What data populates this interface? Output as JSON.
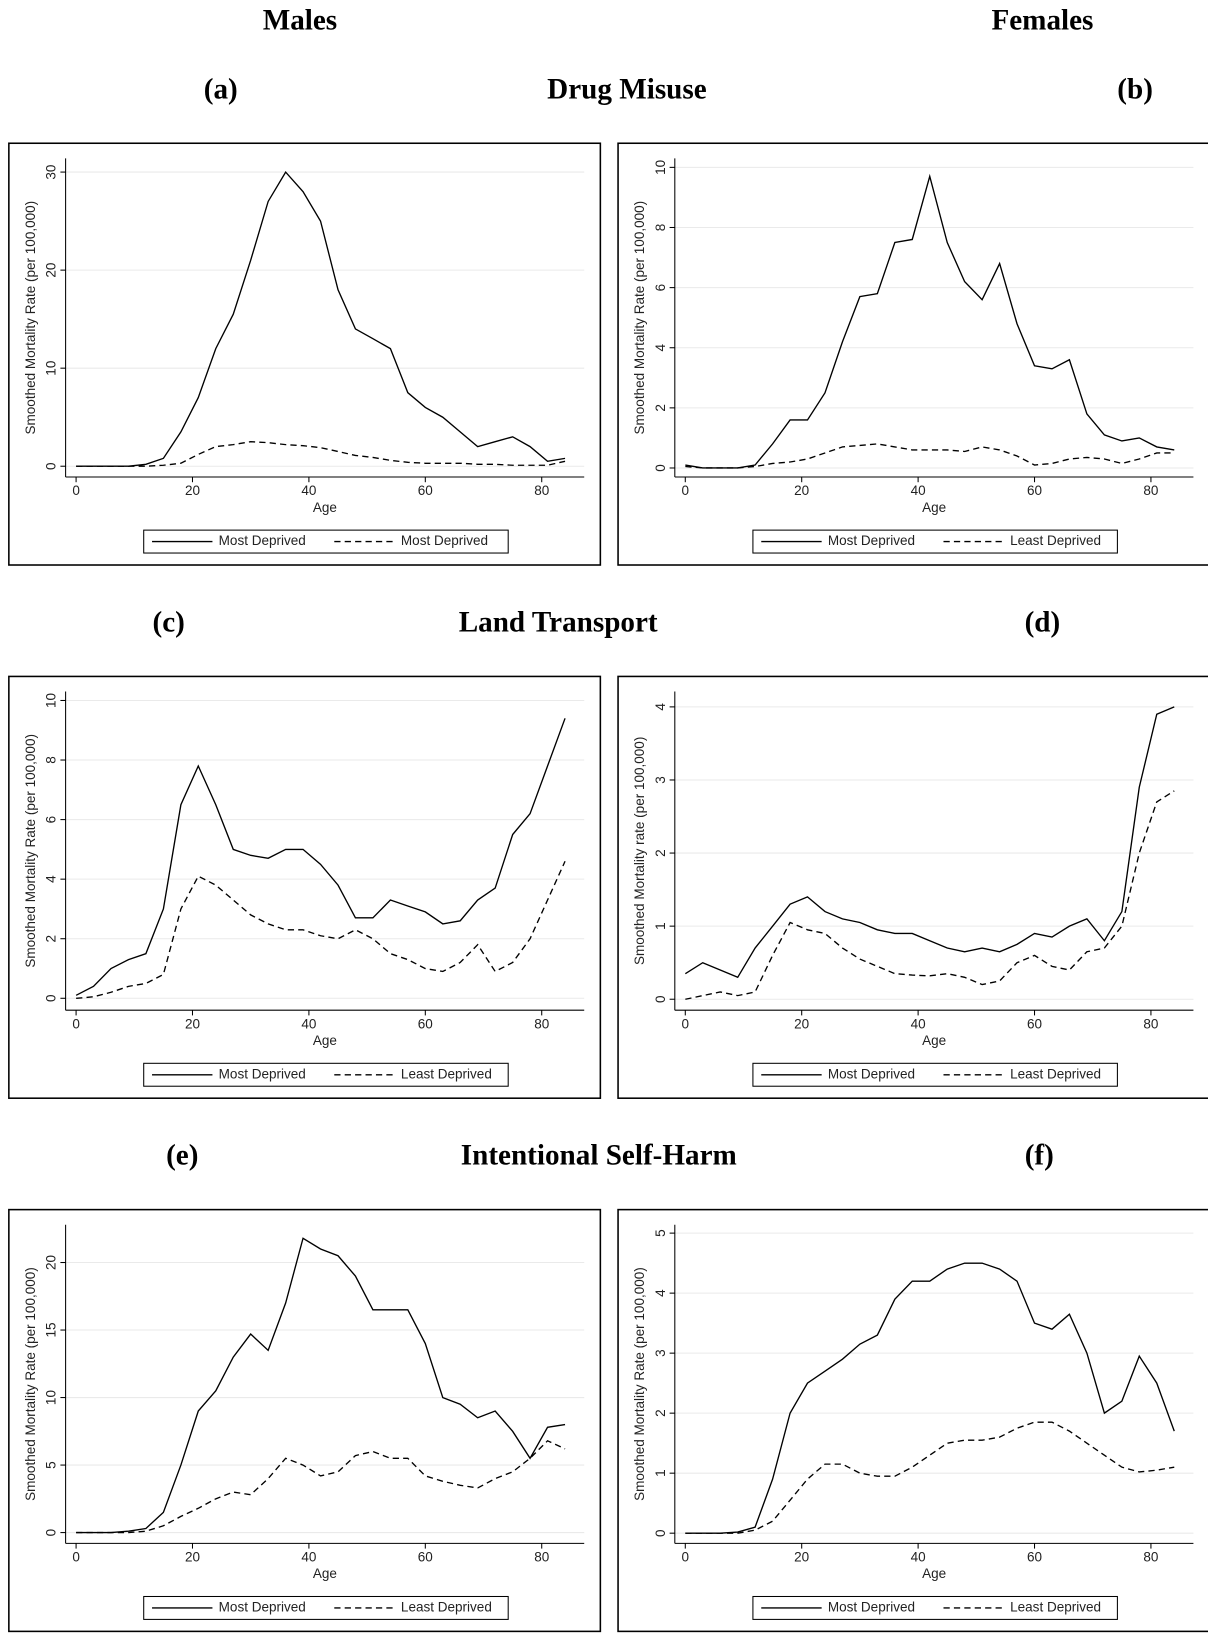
{
  "column_labels": [
    "Males",
    "Females"
  ],
  "rows": [
    "Drug Misuse",
    "Land Transport",
    "Intentional Self-Harm"
  ],
  "chart_data": [
    {
      "type": "line",
      "label": "(a)",
      "x_label": "Age",
      "y_label": "Smoothed Mortality Rate (per 100,000)",
      "x": [
        0,
        3,
        6,
        9,
        12,
        15,
        18,
        21,
        24,
        27,
        30,
        33,
        36,
        39,
        42,
        45,
        48,
        51,
        54,
        57,
        60,
        63,
        66,
        69,
        72,
        75,
        78,
        81,
        84
      ],
      "xlim": [
        -1.8,
        87.3
      ],
      "ylim": [
        -1.1,
        31.4
      ],
      "xticks": [
        0,
        20,
        40,
        60,
        80
      ],
      "yticks": [
        0,
        10,
        20,
        30
      ],
      "grid": true,
      "series": [
        {
          "name": "Most Deprived",
          "color": "#000000",
          "dashed": false,
          "values": [
            0,
            0,
            0,
            0,
            0.2,
            0.8,
            3.5,
            7,
            12,
            15.5,
            21,
            27,
            30,
            28,
            25,
            18,
            14,
            13,
            12,
            7.5,
            6,
            5,
            3.5,
            2,
            2.5,
            3,
            2,
            0.5,
            0.8
          ]
        },
        {
          "name": "Most Deprived",
          "color": "#000000",
          "dashed": true,
          "values": [
            0,
            0,
            0,
            0,
            0,
            0.1,
            0.3,
            1.2,
            2,
            2.2,
            2.5,
            2.4,
            2.2,
            2.1,
            1.9,
            1.5,
            1.1,
            0.9,
            0.6,
            0.4,
            0.3,
            0.3,
            0.3,
            0.2,
            0.2,
            0.1,
            0.1,
            0.1,
            0.5
          ]
        }
      ]
    },
    {
      "type": "line",
      "label": "(b)",
      "x_label": "Age",
      "y_label": "Smoothed Mortality Rate (per 100,000)",
      "x": [
        0,
        3,
        6,
        9,
        12,
        15,
        18,
        21,
        24,
        27,
        30,
        33,
        36,
        39,
        42,
        45,
        48,
        51,
        54,
        57,
        60,
        63,
        66,
        69,
        72,
        75,
        78,
        81,
        84
      ],
      "xlim": [
        -1.8,
        87.3
      ],
      "ylim": [
        -0.3,
        10.3
      ],
      "xticks": [
        0,
        20,
        40,
        60,
        80
      ],
      "yticks": [
        0,
        2,
        4,
        6,
        8,
        10
      ],
      "grid": true,
      "series": [
        {
          "name": "Most Deprived",
          "color": "#000000",
          "dashed": false,
          "values": [
            0.1,
            0,
            0,
            0,
            0.1,
            0.8,
            1.6,
            1.6,
            2.5,
            4.2,
            5.7,
            5.8,
            7.5,
            7.6,
            9.7,
            7.5,
            6.2,
            5.6,
            6.8,
            4.8,
            3.4,
            3.3,
            3.6,
            1.8,
            1.1,
            0.9,
            1,
            0.7,
            0.6
          ]
        },
        {
          "name": "Least Deprived",
          "color": "#000000",
          "dashed": true,
          "values": [
            0.05,
            0,
            0,
            0,
            0.05,
            0.15,
            0.2,
            0.3,
            0.5,
            0.7,
            0.75,
            0.8,
            0.7,
            0.6,
            0.6,
            0.6,
            0.55,
            0.7,
            0.6,
            0.4,
            0.1,
            0.15,
            0.3,
            0.35,
            0.3,
            0.15,
            0.3,
            0.5,
            0.5
          ]
        }
      ]
    },
    {
      "type": "line",
      "label": "(c)",
      "x_label": "Age",
      "y_label": "Smoothed Mortality Rate (per 100,000)",
      "x": [
        0,
        3,
        6,
        9,
        12,
        15,
        18,
        21,
        24,
        27,
        30,
        33,
        36,
        39,
        42,
        45,
        48,
        51,
        54,
        57,
        60,
        63,
        66,
        69,
        72,
        75,
        78,
        81,
        84
      ],
      "xlim": [
        -1.8,
        87.3
      ],
      "ylim": [
        -0.4,
        10.3
      ],
      "xticks": [
        0,
        20,
        40,
        60,
        80
      ],
      "yticks": [
        0,
        2,
        4,
        6,
        8,
        10
      ],
      "grid": true,
      "series": [
        {
          "name": "Most Deprived",
          "color": "#000000",
          "dashed": false,
          "values": [
            0.1,
            0.4,
            1,
            1.3,
            1.5,
            3,
            6.5,
            7.8,
            6.5,
            5,
            4.8,
            4.7,
            5,
            5,
            4.5,
            3.8,
            2.7,
            2.7,
            3.3,
            3.1,
            2.9,
            2.5,
            2.6,
            3.3,
            3.7,
            5.5,
            6.2,
            7.8,
            9.4
          ]
        },
        {
          "name": "Least Deprived",
          "color": "#000000",
          "dashed": true,
          "values": [
            0,
            0.05,
            0.2,
            0.4,
            0.5,
            0.8,
            3,
            4.1,
            3.8,
            3.3,
            2.8,
            2.5,
            2.3,
            2.3,
            2.1,
            2,
            2.3,
            2,
            1.5,
            1.3,
            1,
            0.9,
            1.2,
            1.8,
            0.9,
            1.2,
            2,
            3.3,
            4.6
          ]
        }
      ]
    },
    {
      "type": "line",
      "label": "(d)",
      "x_label": "Age",
      "y_label": "Smoothed Mortality rate (per 100,000)",
      "x": [
        0,
        3,
        6,
        9,
        12,
        15,
        18,
        21,
        24,
        27,
        30,
        33,
        36,
        39,
        42,
        45,
        48,
        51,
        54,
        57,
        60,
        63,
        66,
        69,
        72,
        75,
        78,
        81,
        84
      ],
      "xlim": [
        -1.8,
        87.3
      ],
      "ylim": [
        -0.15,
        4.21
      ],
      "xticks": [
        0,
        20,
        40,
        60,
        80
      ],
      "yticks": [
        0,
        1,
        2,
        3,
        4
      ],
      "grid": true,
      "series": [
        {
          "name": "Most Deprived",
          "color": "#000000",
          "dashed": false,
          "values": [
            0.35,
            0.5,
            0.4,
            0.3,
            0.7,
            1.0,
            1.3,
            1.4,
            1.2,
            1.1,
            1.05,
            0.95,
            0.9,
            0.9,
            0.8,
            0.7,
            0.65,
            0.7,
            0.65,
            0.75,
            0.9,
            0.85,
            1.0,
            1.1,
            0.8,
            1.2,
            2.9,
            3.9,
            4.0
          ]
        },
        {
          "name": "Least Deprived",
          "color": "#000000",
          "dashed": true,
          "values": [
            0,
            0.05,
            0.1,
            0.05,
            0.1,
            0.6,
            1.05,
            0.95,
            0.9,
            0.7,
            0.55,
            0.45,
            0.35,
            0.33,
            0.32,
            0.35,
            0.3,
            0.2,
            0.25,
            0.5,
            0.6,
            0.45,
            0.4,
            0.65,
            0.7,
            1.0,
            2.0,
            2.7,
            2.85
          ]
        }
      ]
    },
    {
      "type": "line",
      "label": "(e)",
      "x_label": "Age",
      "y_label": "Smoothed Mortality Rate (per 100,000)",
      "x": [
        0,
        3,
        6,
        9,
        12,
        15,
        18,
        21,
        24,
        27,
        30,
        33,
        36,
        39,
        42,
        45,
        48,
        51,
        54,
        57,
        60,
        63,
        66,
        69,
        72,
        75,
        78,
        81,
        84
      ],
      "xlim": [
        -1.8,
        87.3
      ],
      "ylim": [
        -0.8,
        22.8
      ],
      "xticks": [
        0,
        20,
        40,
        60,
        80
      ],
      "yticks": [
        0,
        5,
        10,
        15,
        20
      ],
      "grid": true,
      "series": [
        {
          "name": "Most Deprived",
          "color": "#000000",
          "dashed": false,
          "values": [
            0,
            0,
            0,
            0.1,
            0.3,
            1.5,
            5,
            9,
            10.5,
            13,
            14.7,
            13.5,
            17,
            21.8,
            21,
            20.5,
            19,
            16.5,
            16.5,
            16.5,
            14,
            10,
            9.5,
            8.5,
            9,
            7.5,
            5.5,
            7.8,
            8
          ]
        },
        {
          "name": "Least Deprived",
          "color": "#000000",
          "dashed": true,
          "values": [
            0,
            0,
            0,
            0,
            0.1,
            0.5,
            1.2,
            1.8,
            2.5,
            3,
            2.8,
            4,
            5.5,
            5,
            4.2,
            4.5,
            5.7,
            6,
            5.5,
            5.5,
            4.2,
            3.8,
            3.5,
            3.3,
            4,
            4.5,
            5.5,
            6.8,
            6.2
          ]
        }
      ]
    },
    {
      "type": "line",
      "label": "(f)",
      "x_label": "Age",
      "y_label": "Smoothed Mortality Rate (per 100,000)",
      "x": [
        0,
        3,
        6,
        9,
        12,
        15,
        18,
        21,
        24,
        27,
        30,
        33,
        36,
        39,
        42,
        45,
        48,
        51,
        54,
        57,
        60,
        63,
        66,
        69,
        72,
        75,
        78,
        81,
        84
      ],
      "xlim": [
        -1.8,
        87.3
      ],
      "ylim": [
        -0.17,
        5.14
      ],
      "xticks": [
        0,
        20,
        40,
        60,
        80
      ],
      "yticks": [
        0,
        1,
        2,
        3,
        4,
        5
      ],
      "grid": true,
      "series": [
        {
          "name": "Most Deprived",
          "color": "#000000",
          "dashed": false,
          "values": [
            0,
            0,
            0,
            0.02,
            0.1,
            0.9,
            2,
            2.5,
            2.7,
            2.9,
            3.15,
            3.3,
            3.9,
            4.2,
            4.2,
            4.4,
            4.5,
            4.5,
            4.4,
            4.2,
            3.5,
            3.4,
            3.65,
            3.0,
            2.0,
            2.2,
            2.95,
            2.5,
            1.7
          ]
        },
        {
          "name": "Least Deprived",
          "color": "#000000",
          "dashed": true,
          "values": [
            0,
            0,
            0,
            0,
            0.05,
            0.2,
            0.55,
            0.9,
            1.15,
            1.15,
            1.0,
            0.95,
            0.95,
            1.1,
            1.3,
            1.5,
            1.55,
            1.55,
            1.6,
            1.75,
            1.85,
            1.85,
            1.7,
            1.5,
            1.3,
            1.1,
            1.02,
            1.05,
            1.1
          ]
        }
      ]
    }
  ]
}
